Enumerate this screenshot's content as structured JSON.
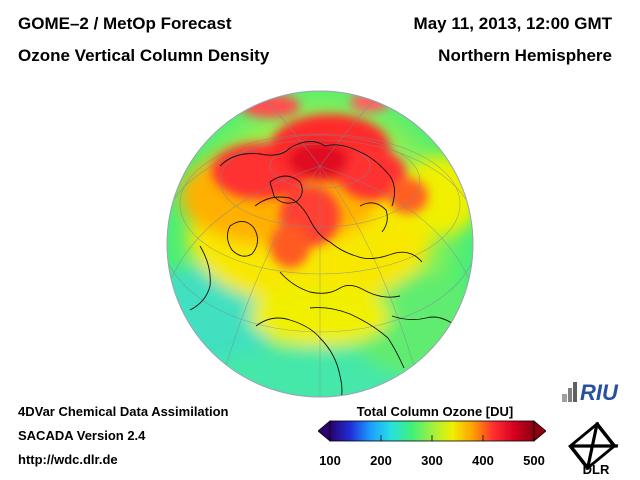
{
  "header": {
    "title_left_1": "GOME–2 / MetOp Forecast",
    "title_left_2": "Ozone Vertical Column Density",
    "title_right_1": "May 11, 2013, 12:00 GMT",
    "title_right_2": "Northern Hemisphere"
  },
  "footer": {
    "line1": "4DVar Chemical Data Assimilation",
    "line2": "SACADA Version 2.4",
    "line3": "http://wdc.dlr.de"
  },
  "colorbar": {
    "title": "Total Column Ozone [DU]",
    "ticks": [
      "100",
      "200",
      "300",
      "400",
      "500"
    ],
    "min": 100,
    "max": 500,
    "colors": [
      "#2a0070",
      "#1f2fd8",
      "#1aa0ff",
      "#27e0e0",
      "#3ef07a",
      "#a0f040",
      "#f0f000",
      "#ffa000",
      "#ff3030",
      "#d80020",
      "#8a0010"
    ]
  },
  "logos": {
    "riu": "RIU",
    "dlr": "DLR"
  }
}
